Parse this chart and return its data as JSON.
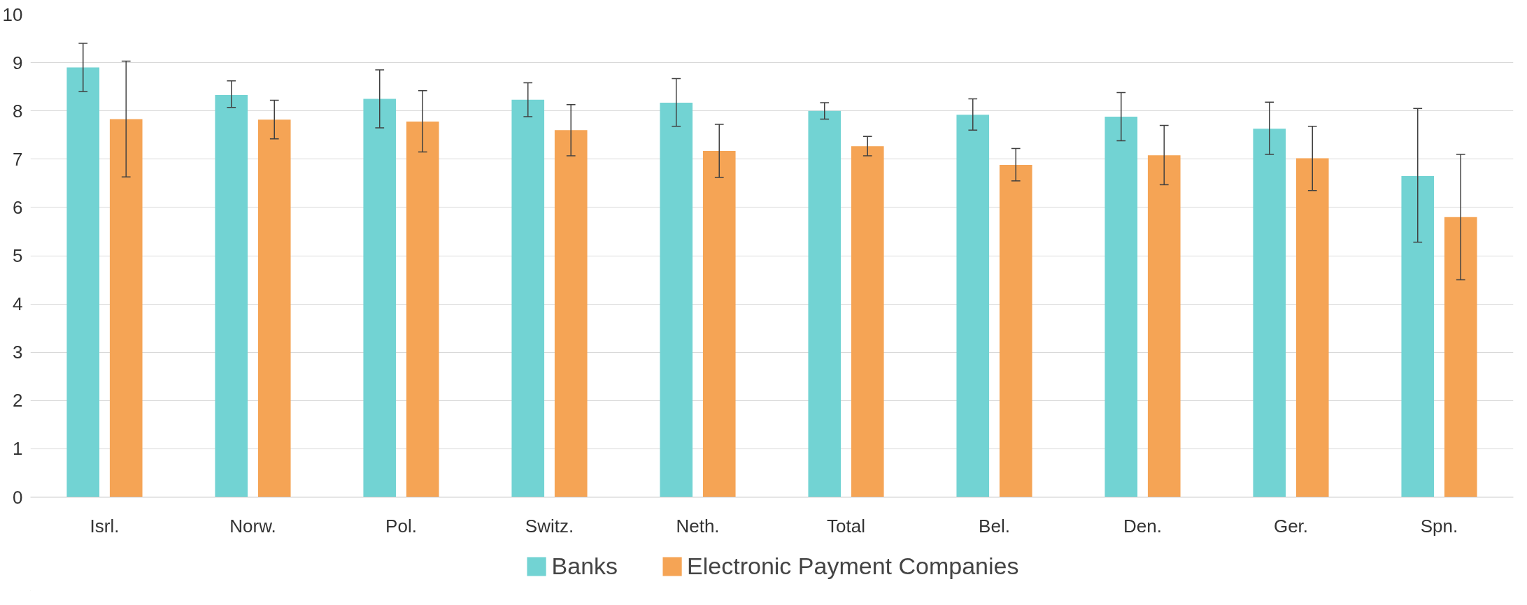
{
  "chart_data": {
    "type": "bar",
    "categories": [
      "Isrl.",
      "Norw.",
      "Pol.",
      "Switz.",
      "Neth.",
      "Total",
      "Bel.",
      "Den.",
      "Ger.",
      "Spn."
    ],
    "series": [
      {
        "name": "Banks",
        "color": "#72d3d3",
        "values": [
          8.9,
          8.33,
          8.25,
          8.23,
          8.17,
          8.0,
          7.92,
          7.88,
          7.63,
          6.65
        ],
        "errors": [
          [
            8.4,
            9.4
          ],
          [
            8.07,
            8.62
          ],
          [
            7.65,
            8.85
          ],
          [
            7.88,
            8.58
          ],
          [
            7.68,
            8.67
          ],
          [
            7.83,
            8.17
          ],
          [
            7.6,
            8.25
          ],
          [
            7.38,
            8.38
          ],
          [
            7.1,
            8.18
          ],
          [
            5.28,
            8.05
          ]
        ]
      },
      {
        "name": "Electronic Payment Companies",
        "color": "#f5a455",
        "values": [
          7.83,
          7.82,
          7.78,
          7.6,
          7.17,
          7.27,
          6.88,
          7.08,
          7.02,
          5.8
        ],
        "errors": [
          [
            6.63,
            9.03
          ],
          [
            7.42,
            8.22
          ],
          [
            7.15,
            8.42
          ],
          [
            7.07,
            8.13
          ],
          [
            6.62,
            7.72
          ],
          [
            7.07,
            7.47
          ],
          [
            6.55,
            7.22
          ],
          [
            6.47,
            7.7
          ],
          [
            6.35,
            7.68
          ],
          [
            4.5,
            7.1
          ]
        ]
      }
    ],
    "ylim": [
      0,
      10
    ],
    "yticks": [
      0,
      1,
      2,
      3,
      4,
      5,
      6,
      7,
      8,
      9,
      10
    ],
    "grid": "y",
    "legend": "bottom"
  }
}
